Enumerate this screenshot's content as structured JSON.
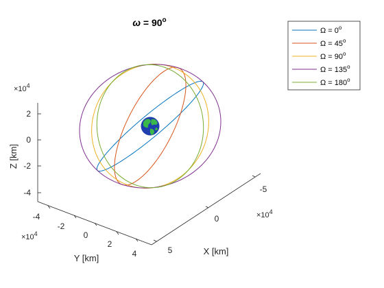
{
  "chart_data": {
    "type": "line",
    "title": "ω = 90°",
    "title_parts": {
      "symbol": "ω",
      "rest": " = 90",
      "sup": "o"
    },
    "axes": {
      "x": {
        "label": "X [km]",
        "ticks": [
          "-5",
          "0",
          "5"
        ],
        "exponent": "×10",
        "exponent_power": "4",
        "range": [
          -50000,
          50000
        ]
      },
      "y": {
        "label": "Y [km]",
        "ticks": [
          "-4",
          "-2",
          "0",
          "2",
          "4"
        ],
        "exponent": "×10",
        "exponent_power": "4",
        "range": [
          -45000,
          45000
        ]
      },
      "z": {
        "label": "Z [km]",
        "ticks": [
          "-4",
          "-2",
          "0",
          "2"
        ],
        "exponent": "×10",
        "exponent_power": "4",
        "range": [
          -50000,
          28000
        ]
      }
    },
    "legend": {
      "placement": "top-right"
    },
    "orbit": {
      "radius_km": 42164,
      "inclination_deg": 60,
      "argument_of_periapsis_deg": 90
    },
    "series": [
      {
        "name": "Ω = 0°",
        "label_prefix": "Ω = ",
        "label_value": "0",
        "label_sup": "o",
        "raan_deg": 0,
        "color": "#0072BD"
      },
      {
        "name": "Ω = 45°",
        "label_prefix": "Ω = ",
        "label_value": "45",
        "label_sup": "o",
        "raan_deg": 45,
        "color": "#D95319"
      },
      {
        "name": "Ω = 90°",
        "label_prefix": "Ω = ",
        "label_value": "90",
        "label_sup": "o",
        "raan_deg": 90,
        "color": "#EDB120"
      },
      {
        "name": "Ω = 135°",
        "label_prefix": "Ω = ",
        "label_value": "135",
        "label_sup": "o",
        "raan_deg": 135,
        "color": "#7E2F8E"
      },
      {
        "name": "Ω = 180°",
        "label_prefix": "Ω = ",
        "label_value": "180",
        "label_sup": "o",
        "raan_deg": 180,
        "color": "#77AC30"
      }
    ],
    "earth": {
      "radius_km": 6371,
      "ocean_color": "#1f3fae",
      "land_color": "#3cb84a"
    }
  }
}
